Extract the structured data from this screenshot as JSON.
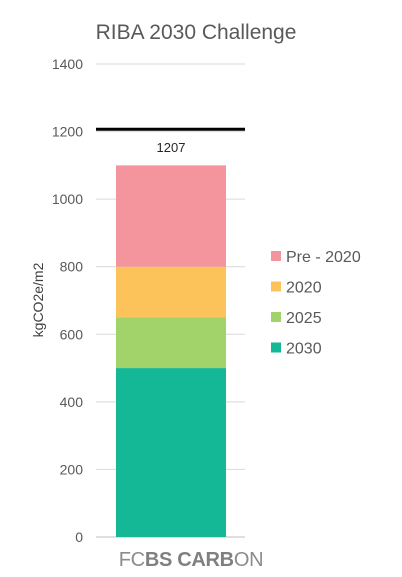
{
  "chart_data": {
    "type": "bar",
    "stacked": true,
    "title": "RIBA 2030 Challenge",
    "ylabel": "kgCO2e/m2",
    "xlabel": "",
    "ylim": [
      0,
      1400
    ],
    "yticks": [
      0,
      200,
      400,
      600,
      800,
      1000,
      1200,
      1400
    ],
    "grid": true,
    "legend_position": "right",
    "categories": [
      ""
    ],
    "series": [
      {
        "name": "2030",
        "values": [
          500
        ],
        "color": "#14B896"
      },
      {
        "name": "2025",
        "values": [
          150
        ],
        "color": "#A2D36B"
      },
      {
        "name": "2020",
        "values": [
          150
        ],
        "color": "#FCC35B"
      },
      {
        "name": "Pre - 2020",
        "values": [
          300
        ],
        "color": "#F4959E"
      }
    ],
    "reference_line": {
      "value": 1207,
      "label": "1207",
      "color": "#000000"
    }
  },
  "branding": {
    "prefix": "FC",
    "bold": "BS CARB",
    "suffix": "ON"
  }
}
